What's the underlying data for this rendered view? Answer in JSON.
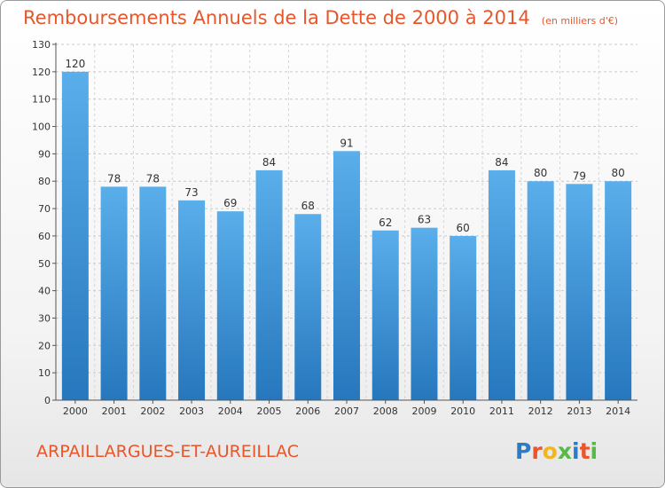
{
  "chart_data": {
    "type": "bar",
    "title": "Remboursements Annuels de la Dette de 2000 à 2014",
    "unit": "(en milliers d'€)",
    "categories": [
      "2000",
      "2001",
      "2002",
      "2003",
      "2004",
      "2005",
      "2006",
      "2007",
      "2008",
      "2009",
      "2010",
      "2011",
      "2012",
      "2013",
      "2014"
    ],
    "values": [
      120,
      78,
      78,
      73,
      69,
      84,
      68,
      91,
      62,
      63,
      60,
      84,
      80,
      79,
      80
    ],
    "xlabel": "",
    "ylabel": "",
    "ylim": [
      0,
      130
    ],
    "ytick_step": 10,
    "grid": true,
    "legend": "none",
    "bar_color": "#3d8fd6",
    "bar_color_light": "#5aaeea",
    "bar_color_dark": "#2677bd"
  },
  "footer": {
    "commune": "ARPAILLARGUES-ET-AUREILLAC",
    "brand": "Proxiti",
    "brand_colors": [
      "#2a7cc7",
      "#e8562a",
      "#f2b51d",
      "#59b947",
      "#2a7cc7",
      "#e8562a",
      "#59b947"
    ]
  }
}
